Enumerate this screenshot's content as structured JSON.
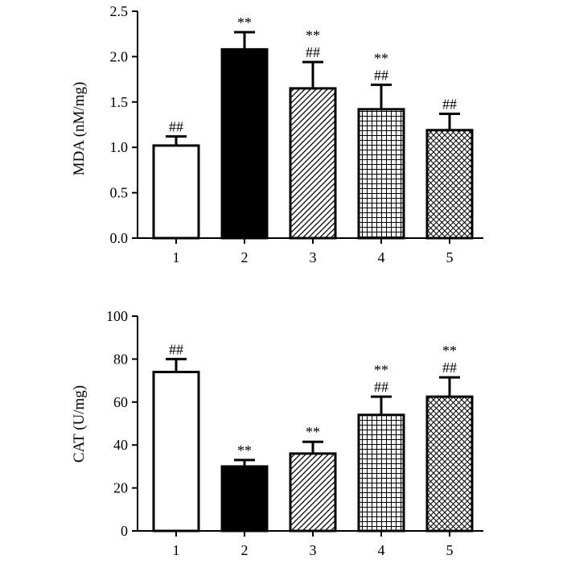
{
  "chart_data": [
    {
      "type": "bar",
      "title": "",
      "xlabel": "",
      "ylabel": "MDA (nM/mg)",
      "categories": [
        "1",
        "2",
        "3",
        "4",
        "5"
      ],
      "values": [
        1.02,
        2.08,
        1.65,
        1.42,
        1.19
      ],
      "errors": [
        0.1,
        0.19,
        0.29,
        0.27,
        0.18
      ],
      "annotations": [
        [
          "##"
        ],
        [
          "**"
        ],
        [
          "**",
          "##"
        ],
        [
          "**",
          "##"
        ],
        [
          "##"
        ]
      ],
      "bar_fills": [
        "white",
        "black",
        "diag-lines",
        "fine-grid",
        "crosshatch"
      ],
      "ylim": [
        0,
        2.5
      ],
      "yticks": [
        0.0,
        0.5,
        1.0,
        1.5,
        2.0,
        2.5
      ],
      "ytick_labels": [
        "0.0",
        "0.5",
        "1.0",
        "1.5",
        "2.0",
        "2.5"
      ],
      "grid": false,
      "legend": "none"
    },
    {
      "type": "bar",
      "title": "",
      "xlabel": "",
      "ylabel": "CAT (U/mg)",
      "categories": [
        "1",
        "2",
        "3",
        "4",
        "5"
      ],
      "values": [
        74,
        30,
        36,
        54,
        62.5
      ],
      "errors": [
        6,
        3,
        5.5,
        8.5,
        9
      ],
      "annotations": [
        [
          "##"
        ],
        [
          "**"
        ],
        [
          "**"
        ],
        [
          "**",
          "##"
        ],
        [
          "**",
          "##"
        ]
      ],
      "bar_fills": [
        "white",
        "black",
        "diag-lines",
        "fine-grid",
        "crosshatch"
      ],
      "ylim": [
        0,
        100
      ],
      "yticks": [
        0,
        20,
        40,
        60,
        80,
        100
      ],
      "ytick_labels": [
        "0",
        "20",
        "40",
        "60",
        "80",
        "100"
      ],
      "grid": false,
      "legend": "none"
    }
  ]
}
